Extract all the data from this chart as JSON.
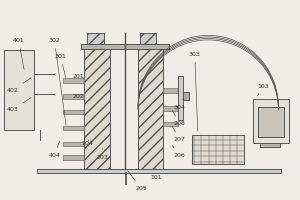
{
  "bg_color": "#f0ede8",
  "line_color": "#555555",
  "labels_data": {
    "101": [
      0.52,
      0.11,
      0.52,
      0.155
    ],
    "103": [
      0.88,
      0.57,
      0.86,
      0.52
    ],
    "201": [
      0.26,
      0.62,
      0.28,
      0.62
    ],
    "202": [
      0.26,
      0.52,
      0.28,
      0.52
    ],
    "203": [
      0.34,
      0.21,
      0.34,
      0.255
    ],
    "204": [
      0.29,
      0.28,
      0.295,
      0.3
    ],
    "205": [
      0.47,
      0.055,
      0.42,
      0.155
    ],
    "206": [
      0.6,
      0.22,
      0.57,
      0.28
    ],
    "207": [
      0.6,
      0.3,
      0.57,
      0.38
    ],
    "208": [
      0.6,
      0.38,
      0.57,
      0.46
    ],
    "301": [
      0.2,
      0.72,
      0.22,
      0.6
    ],
    "302": [
      0.18,
      0.8,
      0.22,
      0.36
    ],
    "303": [
      0.65,
      0.73,
      0.66,
      0.33
    ],
    "304": [
      0.6,
      0.46,
      0.615,
      0.52
    ],
    "401": [
      0.06,
      0.8,
      0.08,
      0.64
    ],
    "402": [
      0.04,
      0.55,
      0.11,
      0.62
    ],
    "403": [
      0.04,
      0.45,
      0.11,
      0.52
    ],
    "404": [
      0.18,
      0.22,
      0.2,
      0.305
    ]
  },
  "figsize": [
    3.0,
    2.0
  ],
  "dpi": 100,
  "label_fontsize": 4.5,
  "label_color": "#333333"
}
